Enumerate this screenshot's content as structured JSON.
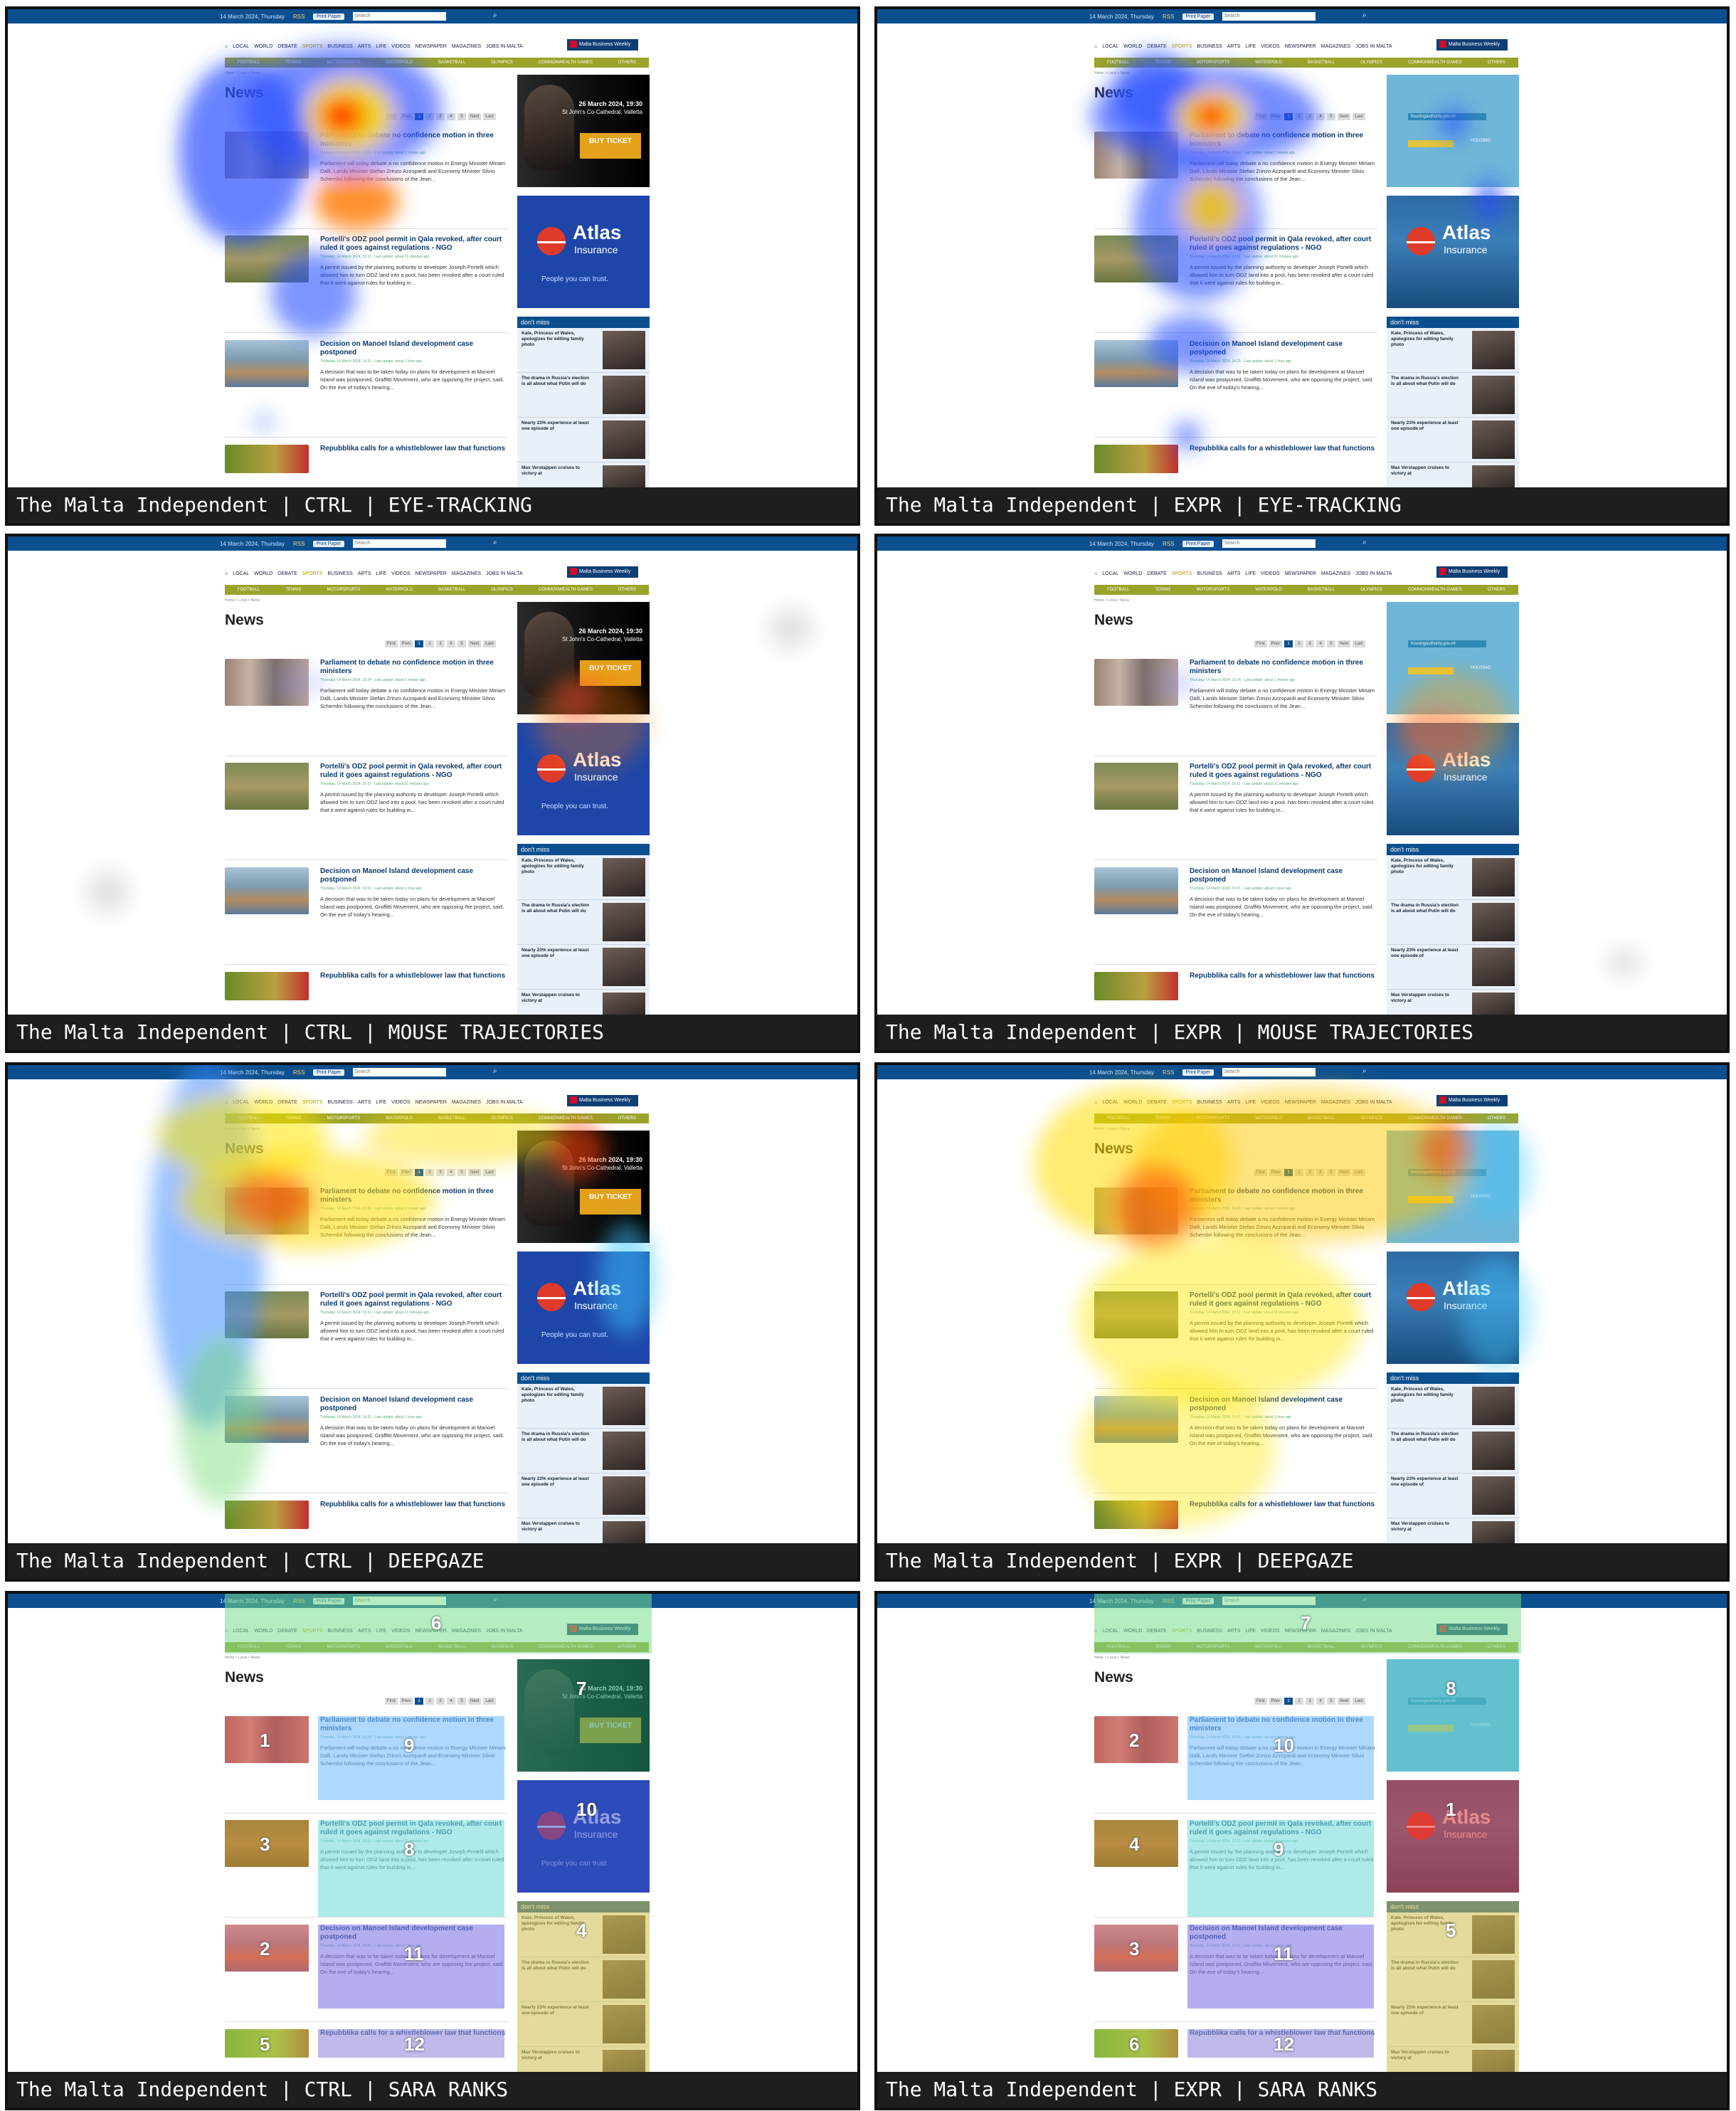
{
  "captions": [
    "The Malta Independent | CTRL | EYE-TRACKING",
    "The Malta Independent | EXPR | EYE-TRACKING",
    "The Malta Independent | CTRL | MOUSE TRAJECTORIES",
    "The Malta Independent | EXPR | MOUSE TRAJECTORIES",
    "The Malta Independent | CTRL | DEEPGAZE",
    "The Malta Independent | EXPR | DEEPGAZE",
    "The Malta Independent | CTRL | SARA RANKS",
    "The Malta Independent | EXPR | SARA RANKS"
  ],
  "site": {
    "date": "14 March 2024, Thursday",
    "rss": "RSS",
    "epaper": "Print Paper",
    "search_placeholder": "Search",
    "nav": [
      "LOCAL",
      "WORLD",
      "DEBATE",
      "SPORTS",
      "BUSINESS",
      "ARTS",
      "LIFE",
      "VIDEOS",
      "NEWSPAPER",
      "MAGAZINES",
      "JOBS IN MALTA"
    ],
    "mbw": "Malta Business Weekly",
    "subnav": [
      "FOOTBALL",
      "TENNIS",
      "MOTORSPORTS",
      "WATERPOLO",
      "BASKETBALL",
      "OLYMPICS",
      "COMMONWEALTH GAMES",
      "OTHERS"
    ],
    "breadcrumb": "Home > Local > News",
    "page_title": "News",
    "pager": [
      "First",
      "Prev",
      "1",
      "2",
      "3",
      "4",
      "5",
      "Next",
      "Last"
    ],
    "articles": [
      {
        "title": "Parliament to debate no confidence motion in three ministers",
        "meta": "Thursday, 14 March 2024, 15:24 · Last update: about 1 minute ago",
        "text": "Parliament will today debate a no confidence motion in Energy Minister Miriam Dalli, Lands Minister Stefan Zrinzo Azzopardi and Economy Minister Silvio Schembri following the conclusions of the Jean..."
      },
      {
        "title": "Portelli's ODZ pool permit in Qala revoked, after court ruled it goes against regulations - NGO",
        "meta": "Thursday, 14 March 2024, 15:11 · Last update: about 21 minutes ago",
        "text": "A permit issued by the planning authority to developer Joseph Portelli which allowed him to turn ODZ land into a pool, has been revoked after a court ruled that it went against rules for building in..."
      },
      {
        "title": "Decision on Manoel Island development case postponed",
        "meta": "Thursday, 14 March 2024, 14:21 · Last update: about 1 hour ago",
        "text": "A decision that was to be taken today on plans for development at Manoel Island was postponed, Graffitti Movement, who are opposing the project, said. On the eve of today's hearing..."
      },
      {
        "title": "Repubblika calls for a whistleblower law that functions",
        "meta": "",
        "text": ""
      }
    ],
    "ad_ticket": {
      "date": "26 March 2024, 19:30",
      "venue": "St John's Co-Cathedral, Valletta",
      "cta": "BUY TICKET"
    },
    "ad_housing": {
      "url": "housingauthority.gov.mt",
      "logo": "HOUSING"
    },
    "ad_atlas": {
      "word": "Atlas",
      "sub": "Insurance",
      "tag": "People you can trust."
    },
    "dont_miss": {
      "title": "don't miss",
      "share": "Share",
      "items": [
        "Kate, Princess of Wales, apologizes for editing family photo",
        "The drama in Russia's election is all about what Putin will do",
        "Nearly 23% experience at least one episode of",
        "Max Verstappen cruises to victory at"
      ]
    }
  },
  "sara_ranks": {
    "ctrl": [
      "6",
      "7",
      "1",
      "9",
      "10",
      "3",
      "8",
      "2",
      "11",
      "4",
      "5",
      "12"
    ],
    "expr": [
      "7",
      "8",
      "2",
      "10",
      "1",
      "4",
      "9",
      "3",
      "11",
      "5",
      "6",
      "12"
    ]
  }
}
